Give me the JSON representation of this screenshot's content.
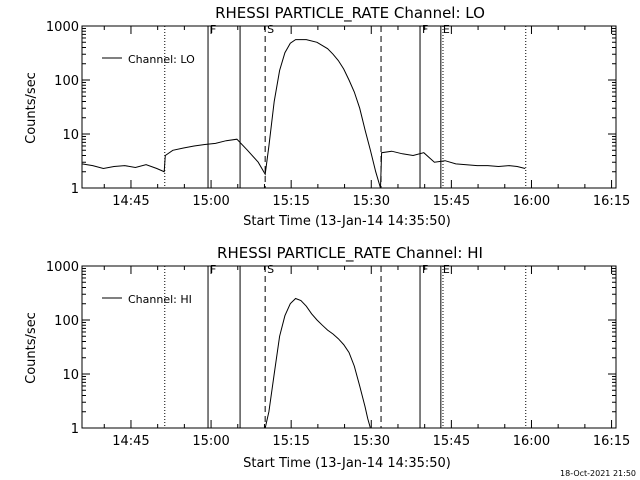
{
  "footer": {
    "timestamp": "18-Oct-2021 21:50"
  },
  "chart_data": [
    {
      "type": "line",
      "title": "RHESSI PARTICLE_RATE Channel: LO",
      "xlabel": "Start Time (13-Jan-14 14:35:50)",
      "ylabel": "Counts/sec",
      "x_units": "minutes after 14:35:50",
      "xlim": [
        0,
        100
      ],
      "ylim": [
        1,
        1000
      ],
      "yscale": "log",
      "xtick_labels": [
        "14:45",
        "15:00",
        "15:15",
        "15:30",
        "15:45",
        "16:00",
        "16:15"
      ],
      "xtick_positions": [
        9.17,
        24.17,
        39.17,
        54.17,
        69.17,
        84.17,
        99.17
      ],
      "ytick_labels": [
        "1",
        "10",
        "100",
        "1000"
      ],
      "ytick_values": [
        1,
        10,
        100,
        1000
      ],
      "legend": {
        "placement": "top-left",
        "label": "Channel: LO"
      },
      "grid": false,
      "vlines": [
        {
          "x": 15.5,
          "style": "dotted"
        },
        {
          "x": 23.6,
          "style": "solid",
          "flag": "F"
        },
        {
          "x": 29.6,
          "style": "solid"
        },
        {
          "x": 34.3,
          "style": "dashed",
          "flag": "S"
        },
        {
          "x": 56.0,
          "style": "dashed"
        },
        {
          "x": 63.3,
          "style": "solid",
          "flag": "F"
        },
        {
          "x": 67.2,
          "style": "solid",
          "flag": "E"
        },
        {
          "x": 67.6,
          "style": "dotted"
        },
        {
          "x": 83.1,
          "style": "dotted"
        }
      ],
      "series": [
        {
          "name": "Channel: LO",
          "x": [
            0,
            2,
            4,
            6,
            8,
            10,
            12,
            14,
            15.4,
            15.6,
            17,
            19,
            21,
            23,
            25,
            27,
            29,
            31,
            33,
            34.3,
            35,
            36,
            37,
            38,
            39,
            40,
            42,
            44,
            46,
            47,
            48,
            49,
            50,
            51,
            52,
            53,
            54,
            55,
            55.9,
            56.1,
            58,
            60,
            62,
            64,
            66,
            68,
            70,
            72,
            74,
            76,
            78,
            80,
            81.5,
            83
          ],
          "y": [
            2.8,
            2.6,
            2.3,
            2.5,
            2.6,
            2.4,
            2.7,
            2.3,
            2.0,
            4.0,
            5.0,
            5.5,
            6.0,
            6.4,
            6.7,
            7.5,
            8.0,
            5.0,
            3.0,
            1.8,
            6.0,
            40,
            150,
            320,
            480,
            560,
            560,
            500,
            380,
            300,
            230,
            160,
            100,
            60,
            30,
            12,
            5.0,
            2.0,
            1.0,
            4.5,
            4.8,
            4.3,
            4.0,
            4.5,
            3.0,
            3.2,
            2.8,
            2.7,
            2.6,
            2.6,
            2.5,
            2.6,
            2.5,
            2.3
          ]
        }
      ]
    },
    {
      "type": "line",
      "title": "RHESSI PARTICLE_RATE Channel: HI",
      "xlabel": "Start Time (13-Jan-14 14:35:50)",
      "ylabel": "Counts/sec",
      "x_units": "minutes after 14:35:50",
      "xlim": [
        0,
        100
      ],
      "ylim": [
        1,
        1000
      ],
      "yscale": "log",
      "xtick_labels": [
        "14:45",
        "15:00",
        "15:15",
        "15:30",
        "15:45",
        "16:00",
        "16:15"
      ],
      "xtick_positions": [
        9.17,
        24.17,
        39.17,
        54.17,
        69.17,
        84.17,
        99.17
      ],
      "ytick_labels": [
        "1",
        "10",
        "100",
        "1000"
      ],
      "ytick_values": [
        1,
        10,
        100,
        1000
      ],
      "legend": {
        "placement": "top-left",
        "label": "Channel: HI"
      },
      "grid": false,
      "vlines": [
        {
          "x": 15.5,
          "style": "dotted"
        },
        {
          "x": 23.6,
          "style": "solid",
          "flag": "F"
        },
        {
          "x": 29.6,
          "style": "solid"
        },
        {
          "x": 34.3,
          "style": "dashed",
          "flag": "S"
        },
        {
          "x": 56.0,
          "style": "dashed"
        },
        {
          "x": 63.3,
          "style": "solid",
          "flag": "F"
        },
        {
          "x": 67.2,
          "style": "solid",
          "flag": "E"
        },
        {
          "x": 67.6,
          "style": "dotted"
        },
        {
          "x": 83.1,
          "style": "dotted"
        }
      ],
      "series": [
        {
          "name": "Channel: HI",
          "x": [
            34.3,
            35,
            36,
            37,
            38,
            39,
            40,
            41,
            42,
            43,
            44,
            45,
            46,
            47,
            48,
            49,
            50,
            51,
            52,
            53,
            53.5,
            54
          ],
          "y": [
            1.0,
            2.0,
            10,
            50,
            120,
            200,
            250,
            230,
            180,
            130,
            100,
            80,
            65,
            55,
            45,
            35,
            25,
            14,
            6,
            2.5,
            1.5,
            1.0
          ]
        }
      ]
    }
  ]
}
